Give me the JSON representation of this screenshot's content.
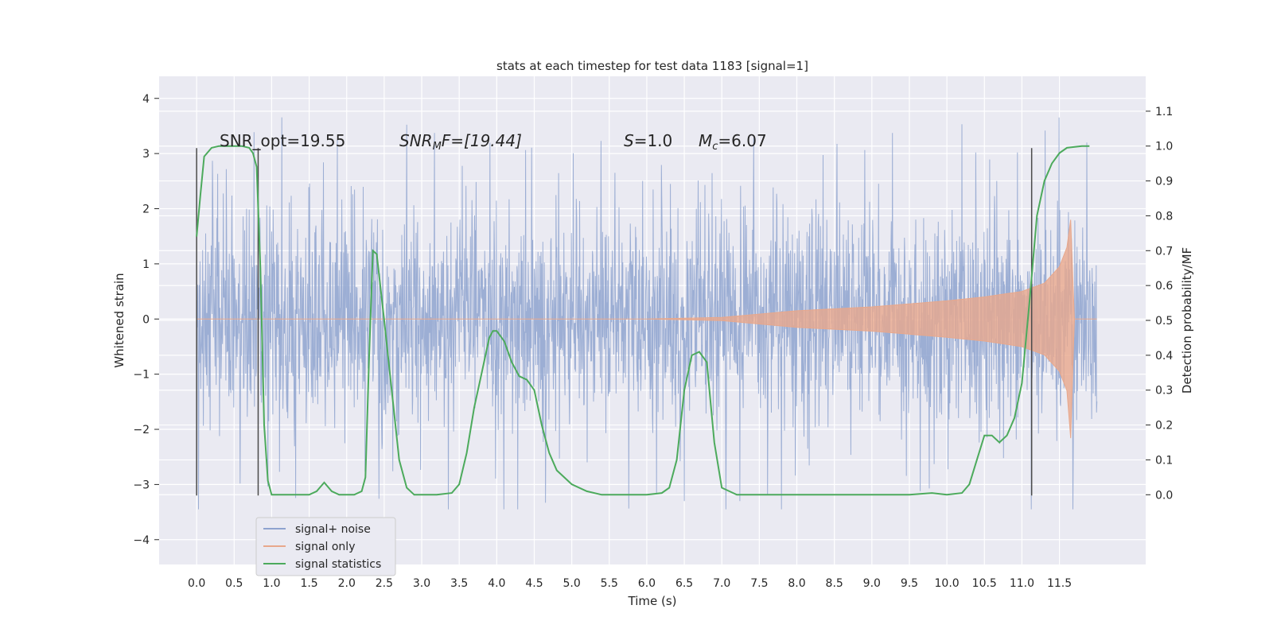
{
  "chart_data": {
    "type": "line",
    "title": "stats at each timestep for test data 1183 [signal=1]",
    "xlabel": "Time (s)",
    "ylabel_left": "Whitened strain",
    "ylabel_right": "Detection probability/MF",
    "xlim": [
      -0.5,
      12.65
    ],
    "ylim_left": [
      -4.45,
      4.4
    ],
    "ylim_right": [
      -0.2,
      1.2
    ],
    "x_ticks": [
      "0.0",
      "0.5",
      "1.0",
      "1.5",
      "2.0",
      "2.5",
      "3.0",
      "3.5",
      "4.0",
      "4.5",
      "5.0",
      "5.5",
      "6.0",
      "6.5",
      "7.0",
      "7.5",
      "8.0",
      "8.5",
      "9.0",
      "9.5",
      "10.0",
      "10.5",
      "11.0",
      "11.5"
    ],
    "y_ticks_left": [
      "−4",
      "−3",
      "−2",
      "−1",
      "0",
      "1",
      "2",
      "3",
      "4"
    ],
    "y_ticks_right": [
      "0.0",
      "0.1",
      "0.2",
      "0.3",
      "0.4",
      "0.5",
      "0.6",
      "0.7",
      "0.8",
      "0.9",
      "1.0",
      "1.1"
    ],
    "grid": true,
    "legend_position": "lower-left",
    "annotations": {
      "snr_opt": "SNR_opt=19.55",
      "snr_mf_main": "SNR",
      "snr_mf_sub": "M",
      "snr_mf_rest": "F=[19.44]",
      "s_main": "S",
      "s_rest": "=1.0",
      "mc_main": "M",
      "mc_sub": "c",
      "mc_rest": "=6.07"
    },
    "vertical_lines": [
      {
        "x": 0.0,
        "y_range": [
          -3.2,
          3.1
        ]
      },
      {
        "x": 0.82,
        "y_range": [
          -3.2,
          3.1
        ]
      },
      {
        "x": 11.13,
        "y_range": [
          -3.2,
          3.1
        ]
      }
    ],
    "series": [
      {
        "name": "signal+ noise",
        "axis": "left",
        "color": "#8ea3cf",
        "x_range": [
          0.0,
          12.0
        ],
        "approx_band": [
          -1.8,
          1.8
        ],
        "approx_extremes": [
          -3.45,
          3.95
        ]
      },
      {
        "name": "signal only",
        "axis": "left",
        "color": "#e8a88c",
        "envelope_x": [
          0.0,
          6.0,
          7.0,
          8.0,
          9.0,
          10.0,
          10.5,
          11.0,
          11.3,
          11.5,
          11.6,
          11.65,
          11.68,
          11.7,
          12.0
        ],
        "envelope_y": [
          0.0,
          0.0,
          0.03,
          0.15,
          0.22,
          0.33,
          0.4,
          0.5,
          0.65,
          0.95,
          1.3,
          1.8,
          0.7,
          0.0,
          0.0
        ]
      },
      {
        "name": "signal statistics",
        "axis": "right",
        "color": "#4caa5c",
        "x": [
          0.0,
          0.05,
          0.1,
          0.2,
          0.3,
          0.4,
          0.5,
          0.6,
          0.7,
          0.75,
          0.8,
          0.85,
          0.9,
          0.95,
          1.0,
          1.2,
          1.5,
          1.6,
          1.7,
          1.8,
          1.9,
          2.0,
          2.1,
          2.2,
          2.25,
          2.3,
          2.35,
          2.4,
          2.5,
          2.6,
          2.7,
          2.8,
          2.9,
          3.0,
          3.2,
          3.4,
          3.5,
          3.6,
          3.7,
          3.8,
          3.9,
          3.95,
          4.0,
          4.1,
          4.2,
          4.3,
          4.4,
          4.5,
          4.6,
          4.7,
          4.8,
          5.0,
          5.2,
          5.4,
          5.6,
          5.8,
          6.0,
          6.2,
          6.3,
          6.4,
          6.5,
          6.6,
          6.7,
          6.8,
          6.9,
          7.0,
          7.2,
          7.5,
          8.0,
          8.5,
          9.0,
          9.5,
          9.8,
          10.0,
          10.2,
          10.3,
          10.4,
          10.5,
          10.6,
          10.7,
          10.8,
          10.9,
          11.0,
          11.1,
          11.2,
          11.3,
          11.4,
          11.5,
          11.6,
          11.8,
          11.9
        ],
        "y": [
          0.74,
          0.86,
          0.97,
          0.995,
          1.0,
          1.0,
          1.0,
          1.0,
          0.995,
          0.98,
          0.94,
          0.65,
          0.2,
          0.04,
          0.0,
          0.0,
          0.0,
          0.01,
          0.035,
          0.01,
          0.0,
          0.0,
          0.0,
          0.01,
          0.05,
          0.4,
          0.7,
          0.69,
          0.5,
          0.3,
          0.1,
          0.02,
          0.0,
          0.0,
          0.0,
          0.005,
          0.03,
          0.12,
          0.25,
          0.35,
          0.45,
          0.47,
          0.47,
          0.44,
          0.38,
          0.34,
          0.33,
          0.3,
          0.2,
          0.12,
          0.07,
          0.03,
          0.01,
          0.0,
          0.0,
          0.0,
          0.0,
          0.005,
          0.02,
          0.1,
          0.3,
          0.4,
          0.41,
          0.38,
          0.15,
          0.02,
          0.0,
          0.0,
          0.0,
          0.0,
          0.0,
          0.0,
          0.005,
          0.0,
          0.005,
          0.03,
          0.1,
          0.17,
          0.17,
          0.15,
          0.17,
          0.22,
          0.32,
          0.55,
          0.8,
          0.9,
          0.95,
          0.98,
          0.995,
          1.0,
          1.0
        ]
      }
    ]
  },
  "colors": {
    "plot_background": "#eaeaf2",
    "grid": "#ffffff",
    "vertical_line": "#4a4a4a"
  }
}
